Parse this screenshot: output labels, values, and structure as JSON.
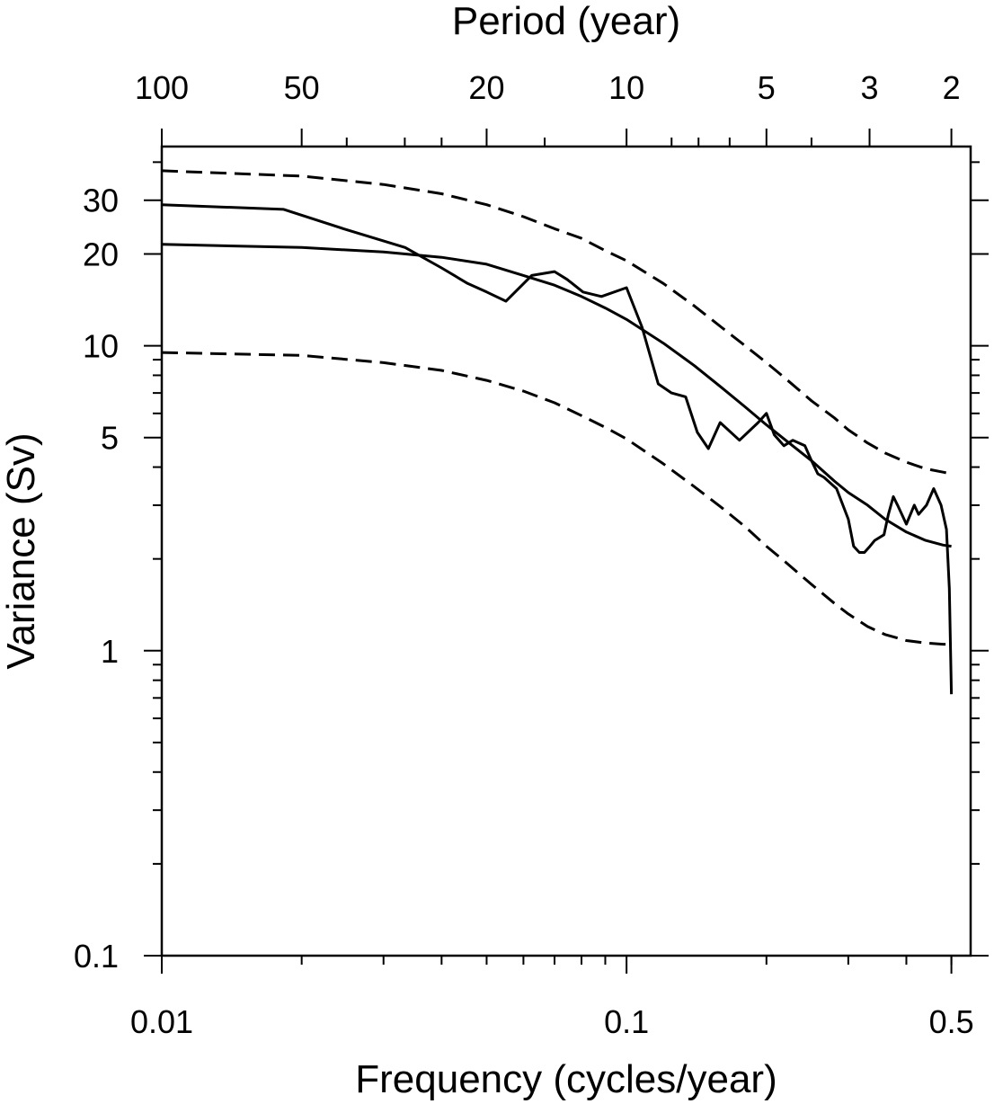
{
  "chart_data": {
    "type": "line",
    "title": "",
    "xlabel": "Frequency (cycles/year)",
    "ylabel": "Variance (Sv)",
    "top_xlabel": "Period (year)",
    "x_scale": "log",
    "y_scale": "log",
    "xlim": [
      0.01,
      0.55
    ],
    "ylim": [
      0.1,
      45
    ],
    "x_ticks": [
      {
        "value": 0.01,
        "label": "0.01"
      },
      {
        "value": 0.1,
        "label": "0.1"
      },
      {
        "value": 0.5,
        "label": "0.5"
      }
    ],
    "x_minor_ticks": [
      0.02,
      0.03,
      0.04,
      0.05,
      0.06,
      0.07,
      0.08,
      0.09,
      0.2,
      0.3,
      0.4,
      0.5
    ],
    "y_ticks": [
      {
        "value": 0.1,
        "label": "0.1"
      },
      {
        "value": 1,
        "label": "1"
      },
      {
        "value": 5,
        "label": "5"
      },
      {
        "value": 10,
        "label": "10"
      },
      {
        "value": 20,
        "label": "20"
      },
      {
        "value": 30,
        "label": "30"
      }
    ],
    "y_minor_ticks": [
      0.2,
      0.3,
      0.4,
      0.5,
      0.6,
      0.7,
      0.8,
      0.9,
      2,
      3,
      4,
      6,
      7,
      8,
      9,
      40
    ],
    "top_ticks": [
      {
        "period": 100,
        "label": "100"
      },
      {
        "period": 50,
        "label": "50"
      },
      {
        "period": 20,
        "label": "20"
      },
      {
        "period": 10,
        "label": "10"
      },
      {
        "period": 5,
        "label": "5"
      },
      {
        "period": 3,
        "label": "3"
      },
      {
        "period": 2,
        "label": "2"
      }
    ],
    "top_minor_periods": [
      40,
      30,
      25,
      15,
      8,
      7,
      6,
      4
    ],
    "series": [
      {
        "style": "solid",
        "x": [
          0.01,
          0.0183,
          0.025,
          0.0334,
          0.04,
          0.0455,
          0.05,
          0.055,
          0.0625,
          0.07,
          0.0745,
          0.0806,
          0.0883,
          0.1,
          0.108,
          0.117,
          0.125,
          0.134,
          0.142,
          0.15,
          0.159,
          0.175,
          0.192,
          0.2,
          0.208,
          0.218,
          0.228,
          0.242,
          0.25,
          0.258,
          0.266,
          0.283,
          0.3,
          0.308,
          0.317,
          0.325,
          0.334,
          0.342,
          0.358,
          0.366,
          0.375,
          0.383,
          0.4,
          0.416,
          0.425,
          0.442,
          0.458,
          0.475,
          0.488,
          0.495,
          0.5
        ],
        "y": [
          29.0,
          28.0,
          24.0,
          21.0,
          18.0,
          16.0,
          15.0,
          14.0,
          17.0,
          17.5,
          16.5,
          15.0,
          14.5,
          15.5,
          11.5,
          7.5,
          7.0,
          6.8,
          5.2,
          4.6,
          5.6,
          4.9,
          5.6,
          6.0,
          5.1,
          4.7,
          4.9,
          4.7,
          4.2,
          3.8,
          3.7,
          3.4,
          2.7,
          2.2,
          2.1,
          2.1,
          2.2,
          2.3,
          2.4,
          2.8,
          3.2,
          3.0,
          2.6,
          3.0,
          2.8,
          3.0,
          3.4,
          3.0,
          2.5,
          1.6,
          0.72
        ]
      },
      {
        "style": "solid",
        "x": [
          0.01,
          0.02,
          0.03,
          0.04,
          0.05,
          0.06,
          0.07,
          0.08,
          0.09,
          0.1,
          0.12,
          0.14,
          0.16,
          0.18,
          0.2,
          0.22,
          0.25,
          0.28,
          0.3,
          0.33,
          0.36,
          0.4,
          0.44,
          0.48,
          0.5
        ],
        "y": [
          21.5,
          21.0,
          20.3,
          19.5,
          18.5,
          17.0,
          15.8,
          14.5,
          13.3,
          12.2,
          10.2,
          8.6,
          7.3,
          6.3,
          5.5,
          4.9,
          4.2,
          3.6,
          3.3,
          3.0,
          2.7,
          2.45,
          2.3,
          2.22,
          2.2
        ]
      },
      {
        "style": "dashed",
        "x": [
          0.01,
          0.02,
          0.03,
          0.04,
          0.05,
          0.06,
          0.07,
          0.08,
          0.09,
          0.1,
          0.12,
          0.14,
          0.16,
          0.18,
          0.2,
          0.22,
          0.25,
          0.28,
          0.3,
          0.33,
          0.36,
          0.4,
          0.44,
          0.48,
          0.5
        ],
        "y": [
          37.5,
          36.0,
          33.8,
          31.5,
          29.0,
          26.5,
          24.2,
          22.5,
          20.5,
          19.0,
          16.0,
          13.5,
          11.5,
          10.0,
          8.8,
          7.8,
          6.6,
          5.8,
          5.3,
          4.8,
          4.45,
          4.15,
          3.95,
          3.85,
          3.8
        ]
      },
      {
        "style": "dashed",
        "x": [
          0.01,
          0.02,
          0.03,
          0.04,
          0.05,
          0.06,
          0.07,
          0.08,
          0.09,
          0.1,
          0.12,
          0.14,
          0.16,
          0.18,
          0.2,
          0.22,
          0.25,
          0.28,
          0.3,
          0.33,
          0.36,
          0.4,
          0.44,
          0.48,
          0.5
        ],
        "y": [
          9.5,
          9.3,
          8.8,
          8.3,
          7.7,
          7.1,
          6.5,
          5.9,
          5.4,
          4.95,
          4.1,
          3.45,
          2.95,
          2.55,
          2.2,
          1.95,
          1.65,
          1.43,
          1.32,
          1.2,
          1.13,
          1.08,
          1.06,
          1.05,
          1.05
        ]
      }
    ]
  }
}
